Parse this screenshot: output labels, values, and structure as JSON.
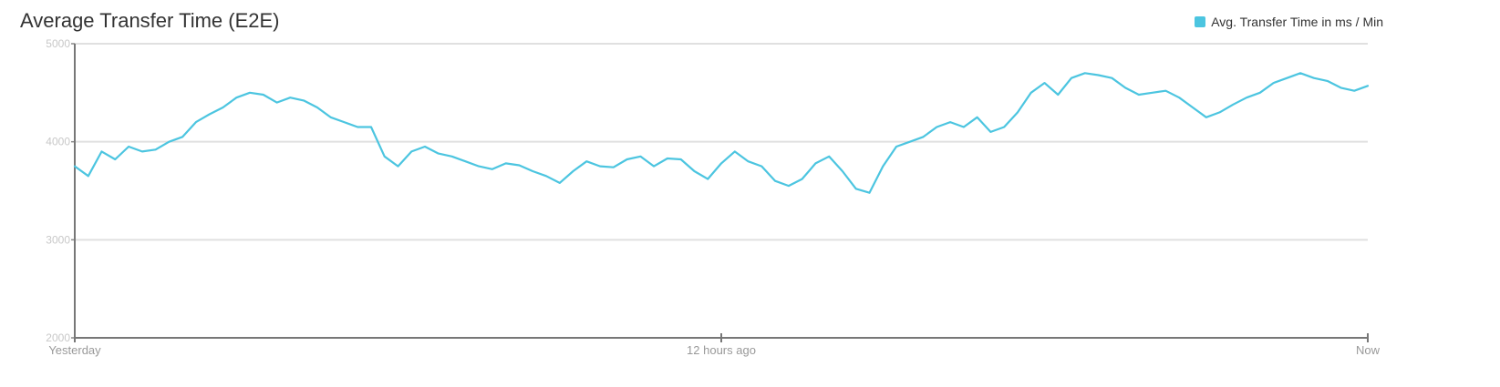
{
  "chart_data": {
    "type": "line",
    "title": "Average Transfer Time (E2E)",
    "xlabel": "",
    "ylabel": "",
    "ylim": [
      2000,
      5000
    ],
    "yticks": [
      "5000",
      "4000",
      "3000",
      "2000"
    ],
    "yticks_values": [
      5000,
      4000,
      3000,
      2000
    ],
    "xticks": [
      "Yesterday",
      "12 hours ago",
      "Now"
    ],
    "xticks_hours": [
      0,
      12,
      24
    ],
    "grid": true,
    "legend_position": "top-right",
    "color": "#4cc5e0",
    "series": [
      {
        "name": "Avg. Transfer Time in ms / Min",
        "x_hours": [
          0,
          0.25,
          0.5,
          0.75,
          1,
          1.25,
          1.5,
          1.75,
          2,
          2.25,
          2.5,
          2.75,
          3,
          3.25,
          3.5,
          3.75,
          4,
          4.25,
          4.5,
          4.75,
          5,
          5.25,
          5.5,
          5.75,
          6,
          6.25,
          6.5,
          6.75,
          7,
          7.25,
          7.5,
          7.75,
          8,
          8.25,
          8.5,
          8.75,
          9,
          9.25,
          9.5,
          9.75,
          10,
          10.25,
          10.5,
          10.75,
          11,
          11.25,
          11.5,
          11.75,
          12,
          12.25,
          12.5,
          12.75,
          13,
          13.25,
          13.5,
          13.75,
          14,
          14.25,
          14.5,
          14.75,
          15,
          15.25,
          15.5,
          15.75,
          16,
          16.25,
          16.5,
          16.75,
          17,
          17.25,
          17.5,
          17.75,
          18,
          18.25,
          18.5,
          18.75,
          19,
          19.25,
          19.5,
          19.75,
          20,
          20.25,
          20.5,
          20.75,
          21,
          21.25,
          21.5,
          21.75,
          22,
          22.25,
          22.5,
          22.75,
          23,
          23.25,
          23.5,
          23.75,
          24
        ],
        "values": [
          3750,
          3650,
          3900,
          3820,
          3950,
          3900,
          3920,
          4000,
          4050,
          4200,
          4280,
          4350,
          4450,
          4500,
          4480,
          4400,
          4450,
          4420,
          4350,
          4250,
          4200,
          4150,
          4150,
          3850,
          3750,
          3900,
          3950,
          3880,
          3850,
          3800,
          3750,
          3720,
          3780,
          3760,
          3700,
          3650,
          3580,
          3700,
          3800,
          3750,
          3740,
          3820,
          3850,
          3750,
          3830,
          3820,
          3700,
          3620,
          3780,
          3900,
          3800,
          3750,
          3600,
          3550,
          3620,
          3780,
          3850,
          3700,
          3520,
          3480,
          3750,
          3950,
          4000,
          4050,
          4150,
          4200,
          4150,
          4250,
          4100,
          4150,
          4300,
          4500,
          4600,
          4480,
          4650,
          4700,
          4680,
          4650,
          4550,
          4480,
          4500,
          4520,
          4450,
          4350,
          4250,
          4300,
          4380,
          4450,
          4500,
          4600,
          4650,
          4700,
          4650,
          4620,
          4550,
          4520,
          4570
        ]
      }
    ]
  }
}
